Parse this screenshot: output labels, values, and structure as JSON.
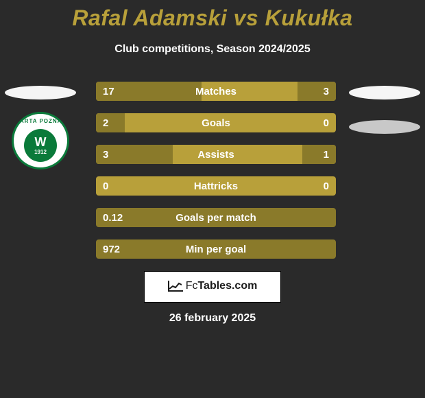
{
  "colors": {
    "background": "#2a2a2a",
    "accent": "#b8a03a",
    "accent_dark": "#8a7a2a",
    "text": "#ffffff",
    "badge_green": "#0a7a3a",
    "white": "#ffffff",
    "grey": "#c8c8c8"
  },
  "header": {
    "title": "Rafal Adamski vs Kukułka",
    "subtitle": "Club competitions, Season 2024/2025"
  },
  "club_badge": {
    "arc_text": "WARTA POZNAN",
    "letter": "W",
    "year": "1912"
  },
  "stats": {
    "rows": [
      {
        "label": "Matches",
        "left": "17",
        "right": "3",
        "left_pct": 44,
        "right_pct": 16
      },
      {
        "label": "Goals",
        "left": "2",
        "right": "0",
        "left_pct": 12,
        "right_pct": 0
      },
      {
        "label": "Assists",
        "left": "3",
        "right": "1",
        "left_pct": 32,
        "right_pct": 14
      },
      {
        "label": "Hattricks",
        "left": "0",
        "right": "0",
        "left_pct": 0,
        "right_pct": 0
      },
      {
        "label": "Goals per match",
        "left": "0.12",
        "right": "",
        "left_pct": 100,
        "right_pct": 0
      },
      {
        "label": "Min per goal",
        "left": "972",
        "right": "",
        "left_pct": 100,
        "right_pct": 0
      }
    ]
  },
  "footer": {
    "brand_prefix": "Fc",
    "brand_suffix": "Tables.com",
    "date": "26 february 2025"
  }
}
